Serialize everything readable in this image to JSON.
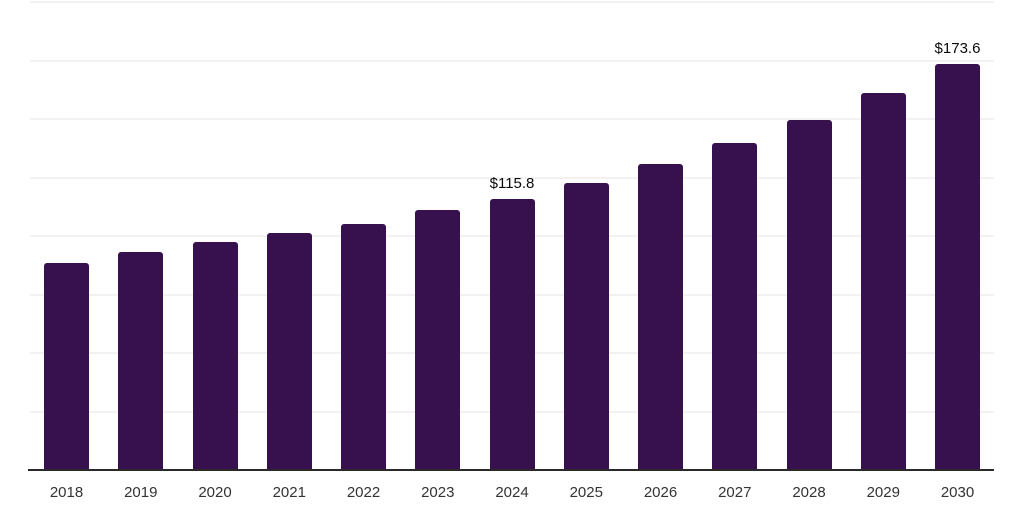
{
  "chart_data": {
    "type": "bar",
    "title": "",
    "xlabel": "",
    "ylabel": "",
    "categories": [
      "2018",
      "2019",
      "2020",
      "2021",
      "2022",
      "2023",
      "2024",
      "2025",
      "2026",
      "2027",
      "2028",
      "2029",
      "2030"
    ],
    "values": [
      88.6,
      93.3,
      97.6,
      101.4,
      105.3,
      111.2,
      115.8,
      122.7,
      130.9,
      139.8,
      149.6,
      161.1,
      173.6
    ],
    "point_labels": {
      "2024": "$115.8",
      "2030": "$173.6"
    },
    "ylim": [
      0,
      200
    ],
    "grid_interval": 25,
    "grid": "horizontal-only",
    "y_axis_labels_visible": false,
    "legend": "none",
    "colors": {
      "bar": "#36114e",
      "gridline": "#f2f2f2",
      "axis_line": "#2a2a2a",
      "tick_label": "#333333",
      "value_label": "#0a0a0a",
      "background": "#ffffff"
    }
  }
}
